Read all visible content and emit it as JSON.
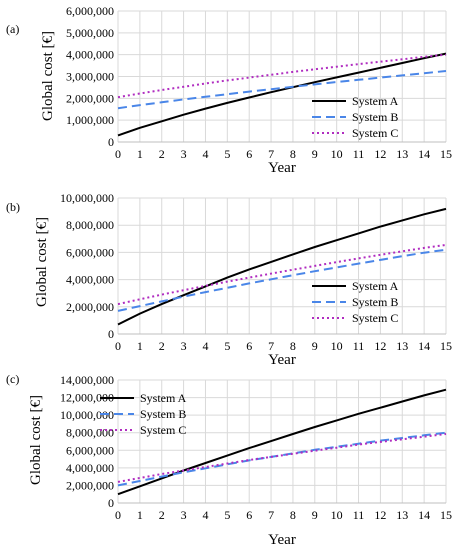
{
  "chart_data": [
    {
      "type": "line",
      "panel_label": "(a)",
      "xlabel": "Year",
      "ylabel": "Global cost [€]",
      "x": [
        0,
        1,
        2,
        3,
        4,
        5,
        6,
        7,
        8,
        9,
        10,
        11,
        12,
        13,
        14,
        15
      ],
      "ylim": [
        0,
        6000000
      ],
      "yticks": [
        0,
        1000000,
        2000000,
        3000000,
        4000000,
        5000000,
        6000000
      ],
      "ytick_labels": [
        "0",
        "1,000,000",
        "2,000,000",
        "3,000,000",
        "4,000,000",
        "5,000,000",
        "6,000,000"
      ],
      "grid": true,
      "legend_position": "bottom-right",
      "series": [
        {
          "name": "System A",
          "color": "#000000",
          "dash": "solid",
          "values": [
            300000,
            650000,
            950000,
            1250000,
            1530000,
            1790000,
            2040000,
            2280000,
            2510000,
            2740000,
            2960000,
            3180000,
            3400000,
            3620000,
            3840000,
            4050000
          ]
        },
        {
          "name": "System B",
          "color": "#4a86e8",
          "dash": "dashed",
          "values": [
            1550000,
            1690000,
            1820000,
            1950000,
            2070000,
            2190000,
            2310000,
            2420000,
            2530000,
            2640000,
            2750000,
            2850000,
            2950000,
            3050000,
            3150000,
            3250000
          ]
        },
        {
          "name": "System C",
          "color": "#b02cc0",
          "dash": "dotted",
          "values": [
            2050000,
            2220000,
            2380000,
            2530000,
            2680000,
            2820000,
            2950000,
            3080000,
            3210000,
            3330000,
            3450000,
            3570000,
            3680000,
            3790000,
            3900000,
            4000000
          ]
        }
      ]
    },
    {
      "type": "line",
      "panel_label": "(b)",
      "xlabel": "Year",
      "ylabel": "Global cost [€]",
      "x": [
        0,
        1,
        2,
        3,
        4,
        5,
        6,
        7,
        8,
        9,
        10,
        11,
        12,
        13,
        14,
        15
      ],
      "ylim": [
        0,
        10000000
      ],
      "yticks": [
        0,
        2000000,
        4000000,
        6000000,
        8000000,
        10000000
      ],
      "ytick_labels": [
        "0",
        "2,000,000",
        "4,000,000",
        "6,000,000",
        "8,000,000",
        "10,000,000"
      ],
      "grid": true,
      "legend_position": "bottom-right",
      "series": [
        {
          "name": "System A",
          "color": "#000000",
          "dash": "solid",
          "values": [
            700000,
            1500000,
            2200000,
            2850000,
            3500000,
            4150000,
            4750000,
            5300000,
            5850000,
            6400000,
            6900000,
            7400000,
            7900000,
            8350000,
            8800000,
            9200000
          ]
        },
        {
          "name": "System B",
          "color": "#4a86e8",
          "dash": "dashed",
          "values": [
            1700000,
            2050000,
            2400000,
            2750000,
            3080000,
            3400000,
            3720000,
            4020000,
            4320000,
            4620000,
            4900000,
            5180000,
            5450000,
            5720000,
            5980000,
            6200000
          ]
        },
        {
          "name": "System C",
          "color": "#b02cc0",
          "dash": "dotted",
          "values": [
            2200000,
            2550000,
            2900000,
            3220000,
            3540000,
            3850000,
            4150000,
            4440000,
            4730000,
            5010000,
            5290000,
            5560000,
            5820000,
            6080000,
            6330000,
            6550000
          ]
        }
      ]
    },
    {
      "type": "line",
      "panel_label": "(c)",
      "xlabel": "Year",
      "ylabel": "Global cost [€]",
      "x": [
        0,
        1,
        2,
        3,
        4,
        5,
        6,
        7,
        8,
        9,
        10,
        11,
        12,
        13,
        14,
        15
      ],
      "ylim": [
        0,
        14000000
      ],
      "yticks": [
        0,
        2000000,
        4000000,
        6000000,
        8000000,
        10000000,
        12000000,
        14000000
      ],
      "ytick_labels": [
        "0",
        "2,000,000",
        "4,000,000",
        "6,000,000",
        "8,000,000",
        "10,000,000",
        "12,000,000",
        "14,000,000"
      ],
      "grid": true,
      "legend_position": "top-left",
      "series": [
        {
          "name": "System A",
          "color": "#000000",
          "dash": "solid",
          "values": [
            1000000,
            1900000,
            2800000,
            3700000,
            4550000,
            5400000,
            6250000,
            7050000,
            7850000,
            8650000,
            9400000,
            10150000,
            10850000,
            11550000,
            12250000,
            12900000
          ]
        },
        {
          "name": "System B",
          "color": "#4a86e8",
          "dash": "dashed",
          "values": [
            2000000,
            2500000,
            3000000,
            3500000,
            3950000,
            4400000,
            4850000,
            5250000,
            5650000,
            6050000,
            6400000,
            6750000,
            7100000,
            7400000,
            7700000,
            8000000
          ]
        },
        {
          "name": "System C",
          "color": "#b02cc0",
          "dash": "dotted",
          "values": [
            2400000,
            2850000,
            3300000,
            3700000,
            4100000,
            4500000,
            4900000,
            5250000,
            5600000,
            5950000,
            6300000,
            6650000,
            6950000,
            7250000,
            7550000,
            7850000
          ]
        }
      ]
    }
  ]
}
